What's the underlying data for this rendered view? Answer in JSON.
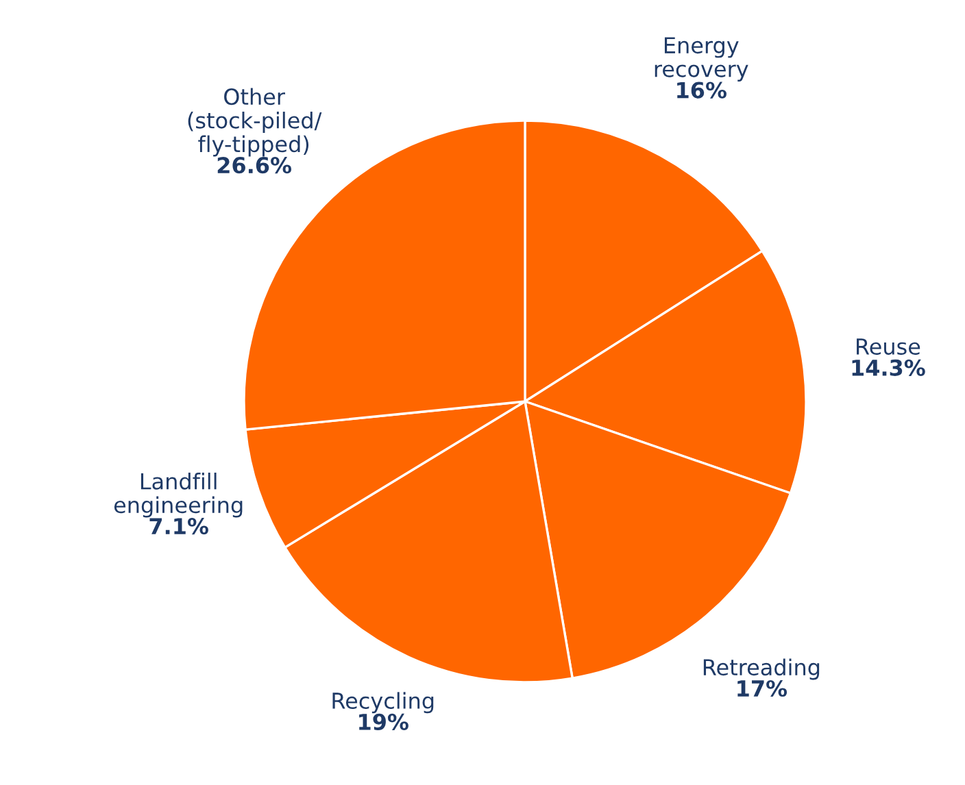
{
  "chart_data": {
    "type": "pie",
    "categories": [
      "Energy\nrecovery",
      "Reuse",
      "Retreading",
      "Recycling",
      "Landfill\nengineering",
      "Other\n(stock-piled/\nfly-tipped)"
    ],
    "values": [
      16,
      14.3,
      17,
      19,
      7.1,
      26.6
    ],
    "value_labels": [
      "16%",
      "14.3%",
      "17%",
      "19%",
      "7.1%",
      "26.6%"
    ],
    "colors": [
      "#ff6600",
      "#ff6600",
      "#ff6600",
      "#ff6600",
      "#ff6600",
      "#ff6600"
    ],
    "legend": false
  }
}
